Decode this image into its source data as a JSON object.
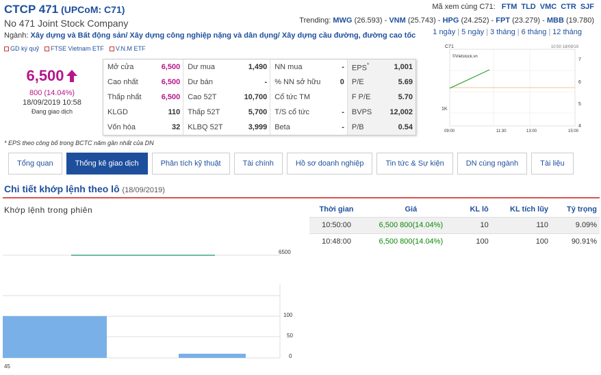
{
  "header": {
    "title": "CTCP 471",
    "exchange": "(UPCoM: C71)",
    "company": "No 471 Joint Stock Company",
    "industry_label": "Ngành:",
    "industry": "Xây dựng và Bất động sản/ Xây dựng công nghiệp nặng và dân dụng/ Xây dựng cầu đường, đường cao tốc",
    "etfs": [
      "GD ký quỹ",
      "FTSE Vietnam ETF",
      "V.N.M ETF"
    ]
  },
  "related": {
    "label": "Mã xem cùng C71:",
    "tickers": [
      "FTM",
      "TLD",
      "VMC",
      "CTR",
      "SJF"
    ]
  },
  "trending": {
    "label": "Trending:",
    "items": [
      {
        "ticker": "MWG",
        "value": "(26.593)"
      },
      {
        "ticker": "VNM",
        "value": "(25.743)"
      },
      {
        "ticker": "HPG",
        "value": "(24.252)"
      },
      {
        "ticker": "FPT",
        "value": "(23.279)"
      },
      {
        "ticker": "MBB",
        "value": "(19.780)"
      }
    ]
  },
  "ranges": [
    "1 ngày",
    "5 ngày",
    "3 tháng",
    "6 tháng",
    "12 tháng"
  ],
  "quote": {
    "price": "6,500",
    "change": "800 (14.04%)",
    "datetime": "18/09/2019 10:58",
    "status": "Đang giao dịch"
  },
  "stats": {
    "rows": [
      [
        {
          "l": "Mở cửa",
          "v": "6,500"
        },
        {
          "l": "Dư mua",
          "v": "1,490"
        },
        {
          "l": "NN mua",
          "v": "-"
        },
        {
          "l": "EPS",
          "v": "1,001"
        }
      ],
      [
        {
          "l": "Cao nhất",
          "v": "6,500"
        },
        {
          "l": "Dư bán",
          "v": "-"
        },
        {
          "l": "% NN sở hữu",
          "v": "0"
        },
        {
          "l": "P/E",
          "v": "5.69"
        }
      ],
      [
        {
          "l": "Thấp nhất",
          "v": "6,500"
        },
        {
          "l": "Cao 52T",
          "v": "10,700"
        },
        {
          "l": "Cổ tức TM",
          "v": ""
        },
        {
          "l": "F P/E",
          "v": "5.70"
        }
      ],
      [
        {
          "l": "KLGD",
          "v": "110"
        },
        {
          "l": "Thấp 52T",
          "v": "5,700"
        },
        {
          "l": "T/S cổ tức",
          "v": "-"
        },
        {
          "l": "BVPS",
          "v": "12,002"
        }
      ],
      [
        {
          "l": "Vốn hóa",
          "v": "32"
        },
        {
          "l": "KLBQ 52T",
          "v": "3,999"
        },
        {
          "l": "Beta",
          "v": "-"
        },
        {
          "l": "P/B",
          "v": "0.54"
        }
      ]
    ],
    "eps_mark": "*"
  },
  "note": "* EPS theo công bố trong BCTC năm gần nhất của DN",
  "minichart": {
    "symbol": "C71",
    "stamp": "10:50 18/09/19",
    "source": "©Vietstock.vn",
    "y_ticks": [
      "7",
      "6",
      "5",
      "4"
    ],
    "vol_label": "1K",
    "x_ticks": [
      "09:00",
      "11:30",
      "13:00",
      "15:00"
    ]
  },
  "tabs": [
    "Tổng quan",
    "Thống kê giao dịch",
    "Phân tích kỹ thuật",
    "Tài chính",
    "Hồ sơ doanh nghiệp",
    "Tin tức & Sự kiện",
    "DN cùng ngành",
    "Tài liệu"
  ],
  "active_tab": 1,
  "section": {
    "title": "Chi tiết khớp lệnh theo lô",
    "date": "(18/09/2019)",
    "intraday_label": "Khớp lệnh trong phiên"
  },
  "trades": {
    "headers": [
      "Thời gian",
      "Giá",
      "KL lô",
      "KL tích lũy",
      "Tỷ trọng"
    ],
    "rows": [
      {
        "time": "10:50:00",
        "price": "6,500 800(14.04%)",
        "lot": "10",
        "cum": "110",
        "pct": "9.09%"
      },
      {
        "time": "10:48:00",
        "price": "6,500 800(14.04%)",
        "lot": "100",
        "cum": "100",
        "pct": "90.91%"
      }
    ]
  },
  "volchart": {
    "price_label": "6500",
    "vol_ticks": [
      "100",
      "50",
      "0"
    ],
    "x_label": "45",
    "bars": [
      100,
      10
    ]
  },
  "colors": {
    "brand": "#1e4f9c",
    "up": "#b5178a",
    "green": "#0a8a0a",
    "red_line": "#d9534f",
    "bar": "#7ab0e8"
  }
}
